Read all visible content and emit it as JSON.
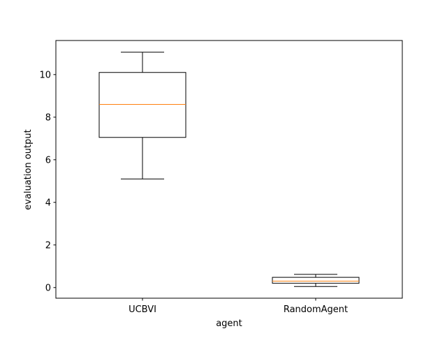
{
  "chart_data": {
    "type": "box",
    "title": "",
    "xlabel": "agent",
    "ylabel": "evaluation output",
    "ylim": [
      -0.5,
      11.6
    ],
    "yticks": [
      0,
      2,
      4,
      6,
      8,
      10
    ],
    "categories": [
      "UCBVI",
      "RandomAgent"
    ],
    "series": [
      {
        "name": "UCBVI",
        "whisker_low": 5.1,
        "q1": 7.05,
        "median": 8.6,
        "q3": 10.1,
        "whisker_high": 11.05
      },
      {
        "name": "RandomAgent",
        "whisker_low": 0.05,
        "q1": 0.2,
        "median": 0.3,
        "q3": 0.48,
        "whisker_high": 0.62
      }
    ],
    "grid": false,
    "colors": {
      "box": "#000000",
      "median": "#ff7f0e",
      "axes": "#000000"
    }
  }
}
